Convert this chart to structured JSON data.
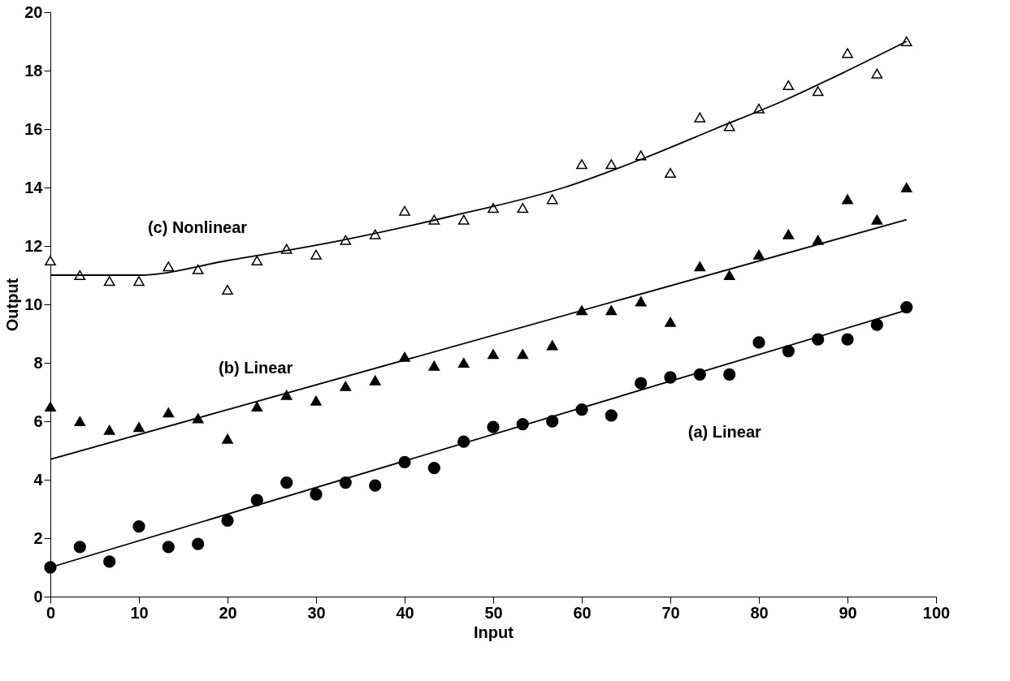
{
  "chart_data": {
    "type": "scatter",
    "xlabel": "Input",
    "ylabel": "Output",
    "xlim": [
      0,
      100
    ],
    "ylim": [
      0,
      20
    ],
    "xticks": [
      0,
      10,
      20,
      30,
      40,
      50,
      60,
      70,
      80,
      90,
      100
    ],
    "yticks": [
      0,
      2,
      4,
      6,
      8,
      10,
      12,
      14,
      16,
      18,
      20
    ],
    "grid": false,
    "x": [
      0,
      3.33,
      6.67,
      10,
      13.33,
      16.67,
      20,
      23.33,
      26.67,
      30,
      33.33,
      36.67,
      40,
      43.33,
      46.67,
      50,
      53.33,
      56.67,
      60,
      63.33,
      66.67,
      70,
      73.33,
      76.67,
      80,
      83.33,
      86.67,
      90,
      93.33,
      96.67
    ],
    "series": [
      {
        "marker": "circle",
        "color": "#000000",
        "values": [
          1.0,
          1.7,
          1.2,
          2.4,
          1.7,
          1.8,
          2.6,
          3.3,
          3.9,
          3.5,
          3.9,
          3.8,
          4.6,
          4.4,
          5.3,
          5.8,
          5.9,
          6.0,
          6.4,
          6.2,
          7.3,
          7.5,
          7.6,
          7.6,
          8.7,
          8.4,
          8.8,
          8.8,
          9.3,
          9.9
        ]
      },
      {
        "marker": "triangle",
        "color": "#000000",
        "values": [
          6.5,
          6.0,
          5.7,
          5.8,
          6.3,
          6.1,
          5.4,
          6.5,
          6.9,
          6.7,
          7.2,
          7.4,
          8.2,
          7.9,
          8.0,
          8.3,
          8.3,
          8.6,
          9.8,
          9.8,
          10.1,
          9.4,
          11.3,
          11.0,
          11.7,
          12.4,
          12.2,
          13.6,
          12.9,
          14.0
        ]
      },
      {
        "marker": "triangle",
        "color": "#ffffff",
        "values": [
          11.5,
          11.0,
          10.8,
          10.8,
          11.3,
          11.2,
          10.5,
          11.5,
          11.9,
          11.7,
          12.2,
          12.4,
          13.2,
          12.9,
          12.9,
          13.3,
          13.3,
          13.6,
          14.8,
          14.8,
          15.1,
          14.5,
          16.4,
          16.1,
          16.7,
          17.5,
          17.3,
          18.6,
          17.9,
          19.0
        ]
      },
      {
        "type": "line",
        "name": "(a) Linear",
        "marker": "none",
        "color": "#000000",
        "x": [
          0,
          96.67
        ],
        "values": [
          1.0,
          9.8
        ]
      },
      {
        "type": "line",
        "name": "(b) Linear",
        "marker": "none",
        "color": "#000000",
        "x": [
          0,
          96.67
        ],
        "values": [
          4.7,
          12.9
        ]
      },
      {
        "type": "line",
        "name": "(c) Nonlinear",
        "marker": "none",
        "color": "#000000",
        "x": [
          0,
          10,
          20,
          33,
          45,
          58,
          67,
          75,
          83,
          90,
          96.67
        ],
        "values": [
          11.0,
          11.0,
          11.5,
          12.2,
          13.0,
          14.0,
          15.0,
          16.0,
          17.0,
          18.0,
          19.0
        ]
      }
    ]
  }
}
